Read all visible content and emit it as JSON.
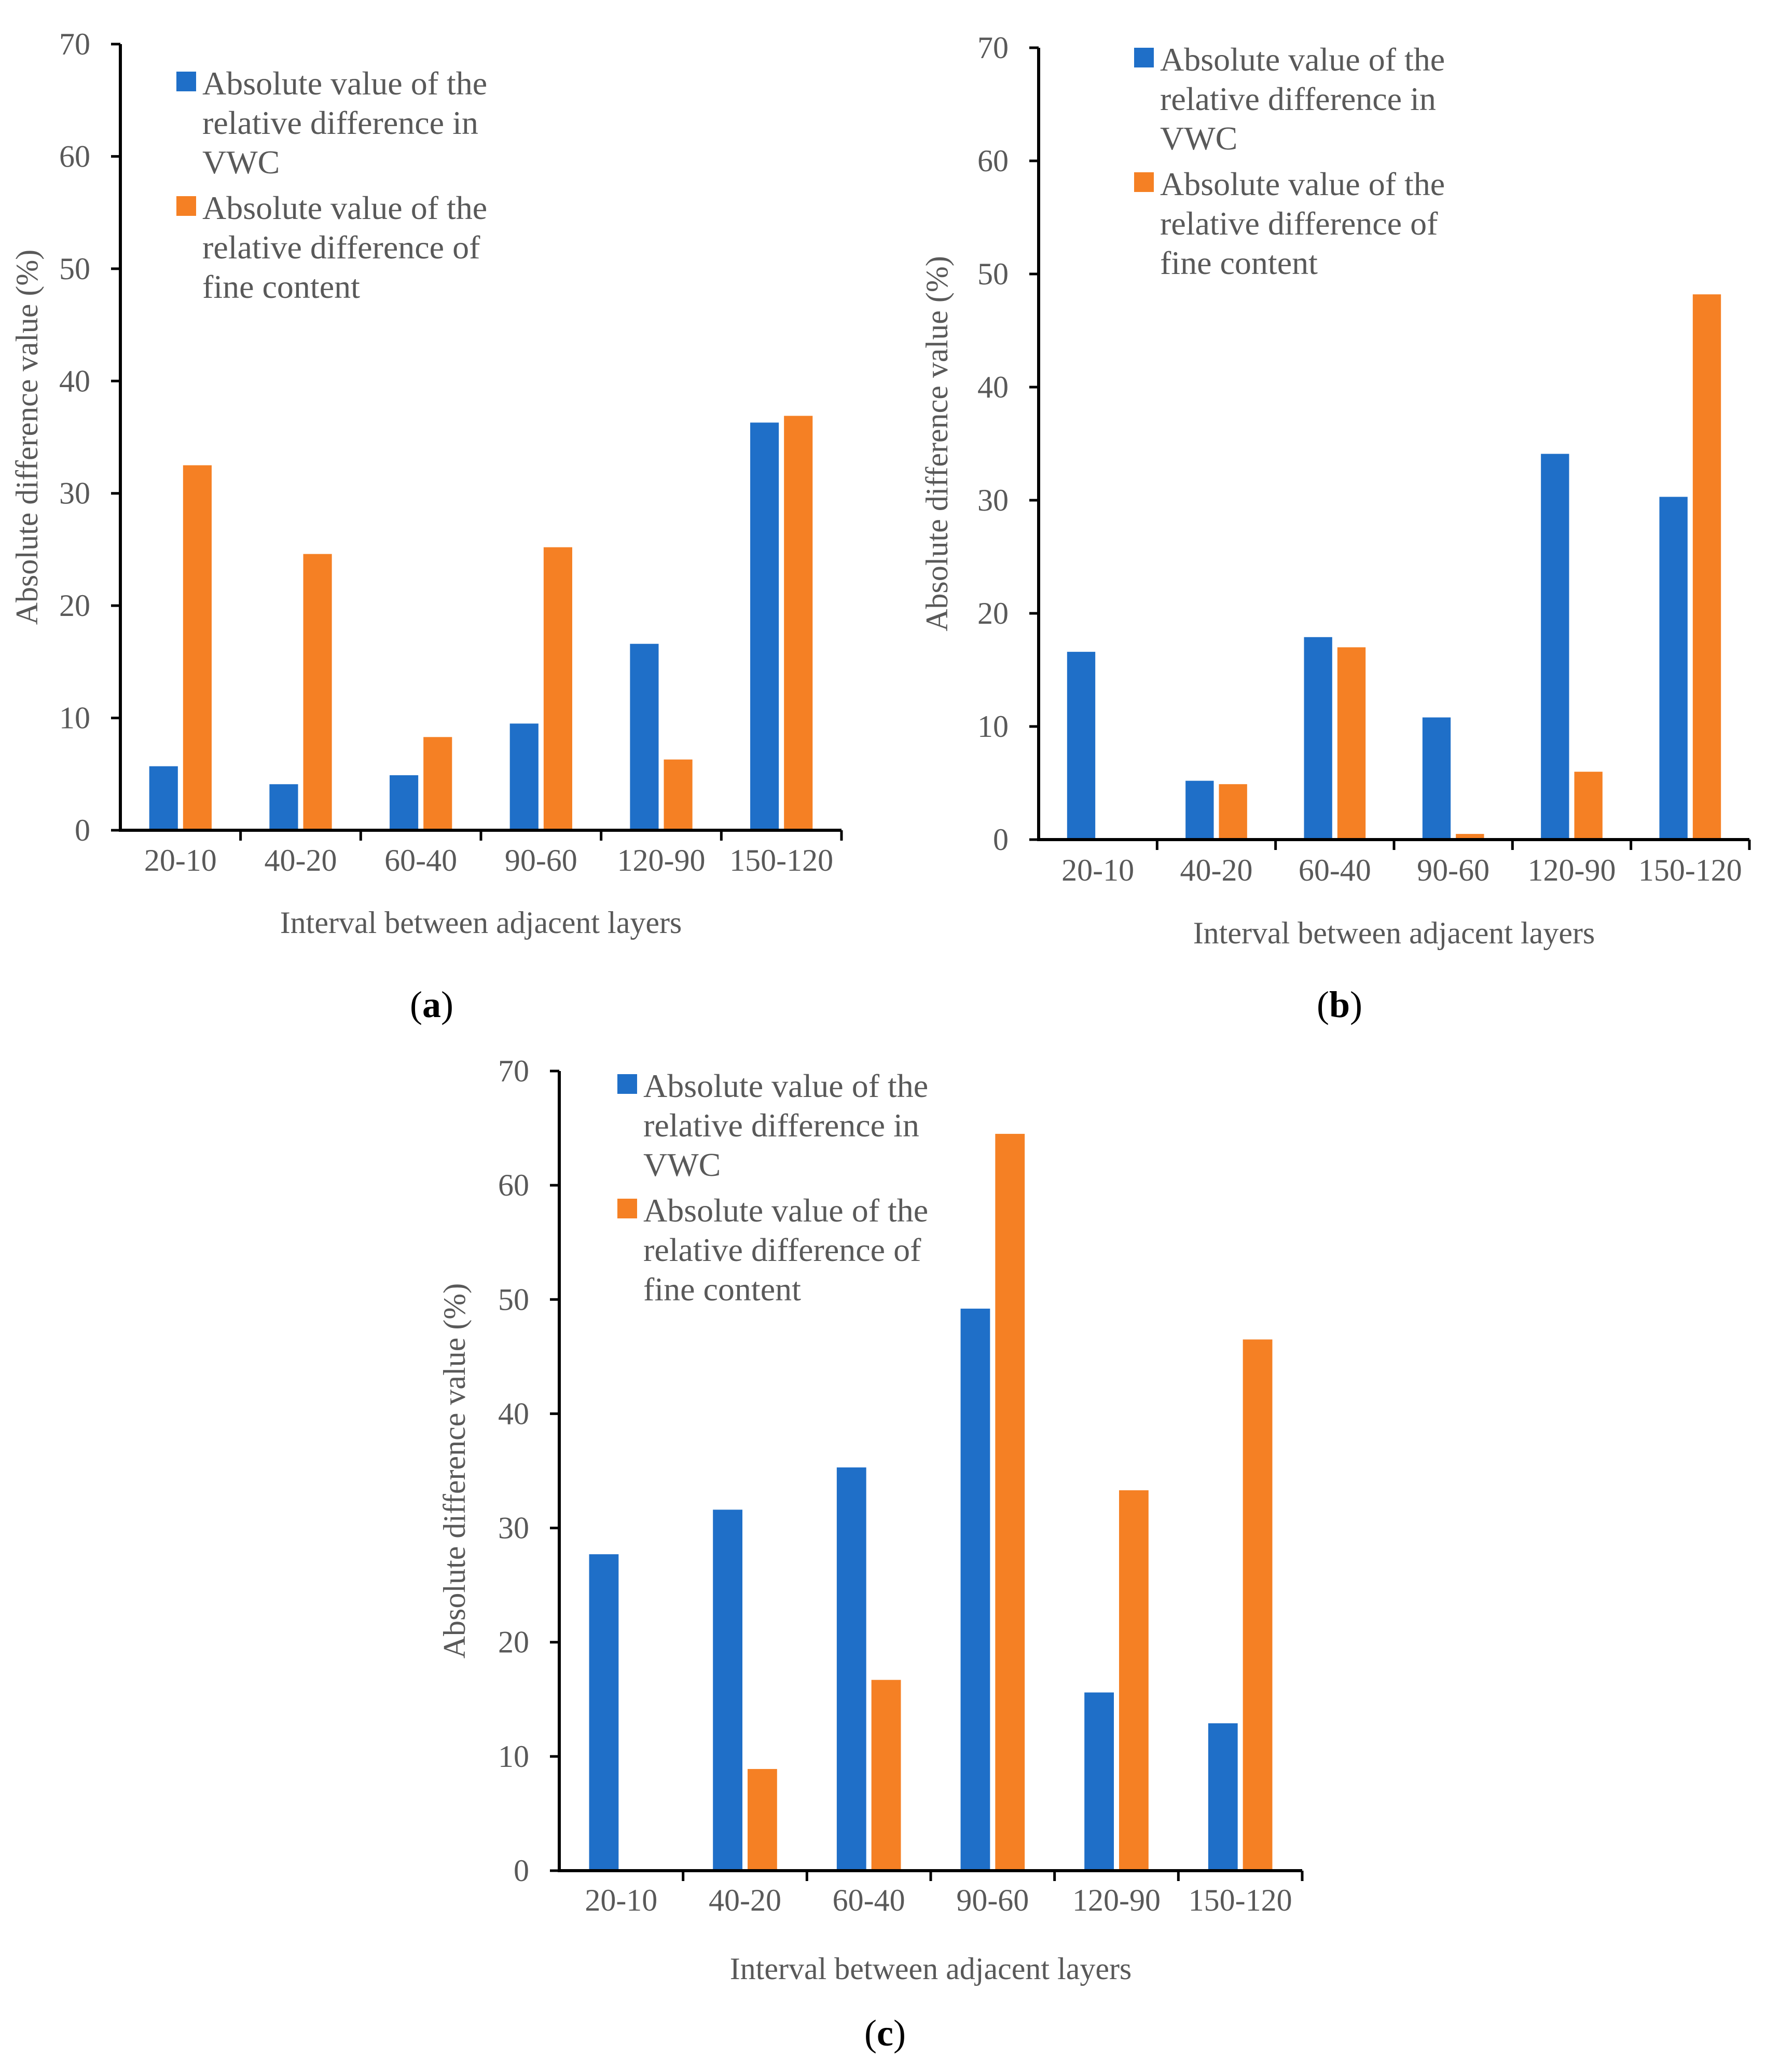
{
  "figure": {
    "colors": {
      "vwc": "#1f6fc8",
      "fine": "#f58024",
      "axis": "#000000",
      "text": "#595959"
    }
  },
  "chart_data": [
    {
      "id": "a",
      "type": "bar",
      "panel_label": {
        "open": "(",
        "letter": "a",
        "close": ")"
      },
      "categories": [
        "20-10",
        "40-20",
        "60-40",
        "90-60",
        "120-90",
        "150-120"
      ],
      "series": [
        {
          "name": "Absolute value of the relative difference in VWC",
          "legend_lines": [
            "Absolute value of the",
            "relative difference in",
            "VWC"
          ],
          "values": [
            5.7,
            4.1,
            4.9,
            9.5,
            16.6,
            36.3
          ]
        },
        {
          "name": "Absolute value of the relative difference of fine content",
          "legend_lines": [
            "Absolute value of the",
            "relative difference of",
            "fine content"
          ],
          "values": [
            32.5,
            24.6,
            8.3,
            25.2,
            6.3,
            36.9
          ]
        }
      ],
      "xlabel": "Interval between adjacent layers",
      "ylabel": "Absolute difference value (%)",
      "ylim": [
        0,
        70
      ],
      "yticks": [
        "0",
        "10",
        "20",
        "30",
        "40",
        "50",
        "60",
        "70"
      ],
      "grid": false,
      "legend_position": "top-left"
    },
    {
      "id": "b",
      "type": "bar",
      "panel_label": {
        "open": "(",
        "letter": "b",
        "close": ")"
      },
      "categories": [
        "20-10",
        "40-20",
        "60-40",
        "90-60",
        "120-90",
        "150-120"
      ],
      "series": [
        {
          "name": "Absolute value of the relative difference in VWC",
          "legend_lines": [
            "Absolute value of the",
            "relative difference in",
            "VWC"
          ],
          "values": [
            16.6,
            5.2,
            17.9,
            10.8,
            34.1,
            30.3
          ]
        },
        {
          "name": "Absolute value of the relative difference of fine content",
          "legend_lines": [
            "Absolute value of the",
            "relative difference of",
            "fine content"
          ],
          "values": [
            0,
            4.9,
            17.0,
            0.5,
            6.0,
            48.2
          ]
        }
      ],
      "xlabel": "Interval between adjacent layers",
      "ylabel": "Absolute difference value (%)",
      "ylim": [
        0,
        70
      ],
      "yticks": [
        "0",
        "10",
        "20",
        "30",
        "40",
        "50",
        "60",
        "70"
      ],
      "grid": false,
      "legend_position": "top-left"
    },
    {
      "id": "c",
      "type": "bar",
      "panel_label": {
        "open": "(",
        "letter": "c",
        "close": ")"
      },
      "categories": [
        "20-10",
        "40-20",
        "60-40",
        "90-60",
        "120-90",
        "150-120"
      ],
      "series": [
        {
          "name": "Absolute value of the relative difference in VWC",
          "legend_lines": [
            "Absolute value of the",
            "relative difference in",
            "VWC"
          ],
          "values": [
            27.7,
            31.6,
            35.3,
            49.2,
            15.6,
            12.9
          ]
        },
        {
          "name": "Absolute value of the relative difference of fine content",
          "legend_lines": [
            "Absolute value of the",
            "relative difference of",
            "fine content"
          ],
          "values": [
            0,
            8.9,
            16.7,
            64.5,
            33.3,
            46.5
          ]
        }
      ],
      "xlabel": "Interval between adjacent layers",
      "ylabel": "Absolute difference value (%)",
      "ylim": [
        0,
        70
      ],
      "yticks": [
        "0",
        "10",
        "20",
        "30",
        "40",
        "50",
        "60",
        "70"
      ],
      "grid": false,
      "legend_position": "top-left"
    }
  ]
}
